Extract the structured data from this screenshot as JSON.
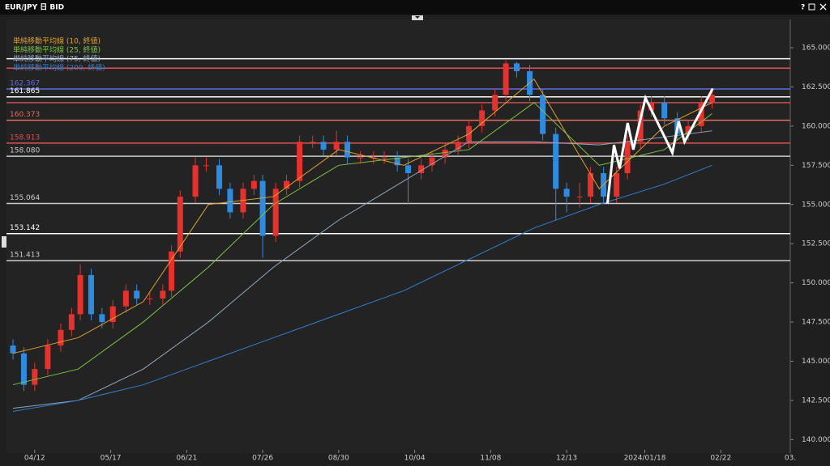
{
  "window": {
    "title": "EUR/JPY 日 BID",
    "help": "?"
  },
  "chart_data": {
    "type": "candlestick",
    "xlim": [
      -13,
      348
    ],
    "ylim": [
      139.4,
      166.6
    ],
    "xticks": [
      {
        "value": 0,
        "label": "04/12"
      },
      {
        "value": 35,
        "label": "05/17"
      },
      {
        "value": 70,
        "label": "06/21"
      },
      {
        "value": 105,
        "label": "07/26"
      },
      {
        "value": 140,
        "label": "08/30"
      },
      {
        "value": 175,
        "label": "10/04"
      },
      {
        "value": 210,
        "label": "11/08"
      },
      {
        "value": 245,
        "label": "12/13"
      },
      {
        "value": 281,
        "label": "2024/01/18"
      },
      {
        "value": 316,
        "label": "02/22"
      },
      {
        "value": 348,
        "label": "03."
      }
    ],
    "yticks": [
      {
        "value": 140,
        "label": "140.000"
      },
      {
        "value": 142.5,
        "label": "142.500"
      },
      {
        "value": 145,
        "label": "145.000"
      },
      {
        "value": 147.5,
        "label": "147.500"
      },
      {
        "value": 150,
        "label": "150.000"
      },
      {
        "value": 152.5,
        "label": "152.500"
      },
      {
        "value": 155,
        "label": "155.000"
      },
      {
        "value": 157.5,
        "label": "157.500"
      },
      {
        "value": 160,
        "label": "160.000"
      },
      {
        "value": 162.5,
        "label": "162.500"
      },
      {
        "value": 165,
        "label": "165.000"
      }
    ],
    "ohlc": {
      "up_color": "#e8302c",
      "down_color": "#2f8be0",
      "x": [
        -10,
        -5,
        0,
        6,
        12,
        17,
        21,
        26,
        31,
        36,
        42,
        47,
        53,
        59,
        63,
        67,
        74,
        79,
        85,
        90,
        96,
        101,
        105,
        111,
        116,
        122,
        128,
        133,
        139,
        144,
        150,
        156,
        161,
        167,
        172,
        178,
        183,
        189,
        195,
        200,
        206,
        212,
        217,
        222,
        228,
        234,
        240,
        245,
        251,
        256,
        262,
        268,
        273,
        279,
        284,
        290,
        296,
        301,
        307,
        312
      ],
      "open": [
        146,
        145.5,
        143.5,
        144.5,
        146,
        147,
        148,
        150.5,
        148,
        147.5,
        148.5,
        149.5,
        149,
        149,
        149.5,
        152,
        155.5,
        157.5,
        157.5,
        156,
        154.5,
        156,
        156.5,
        153,
        156,
        156.5,
        159,
        159,
        158.5,
        159,
        158,
        158,
        158,
        158,
        157.5,
        157,
        157.5,
        158,
        158.5,
        159,
        160,
        161,
        162,
        164,
        163.5,
        162,
        159.5,
        156,
        155.5,
        155.5,
        157,
        155.5,
        157,
        159,
        161,
        161.5,
        160.5,
        159.5,
        160,
        161.5
      ],
      "high": [
        146.4,
        145.9,
        144.9,
        146.4,
        147.4,
        148.4,
        151.2,
        150.9,
        148.4,
        148.9,
        149.9,
        149.9,
        149.4,
        149.9,
        152.4,
        155.9,
        158,
        158,
        157.9,
        156.4,
        156.4,
        156.9,
        156.9,
        156.4,
        156.9,
        159.4,
        159.4,
        159.4,
        159.7,
        159.4,
        158.4,
        158.4,
        158.4,
        158.4,
        157.9,
        157.9,
        158.4,
        158.9,
        159.4,
        160.4,
        161.4,
        162.4,
        164.2,
        164.1,
        163.9,
        162.4,
        159.9,
        156.4,
        156.4,
        157.4,
        157.4,
        157.4,
        159.4,
        161.4,
        161.9,
        161.9,
        160.9,
        160.4,
        161.9,
        162.4
      ],
      "low": [
        145.1,
        143.1,
        143.1,
        144.1,
        145.6,
        146.6,
        147.6,
        147.6,
        147.1,
        147.1,
        148.1,
        148.6,
        148.6,
        148.6,
        149.1,
        151.6,
        155.1,
        157.1,
        155.6,
        154.1,
        154.1,
        155.6,
        151.6,
        152.6,
        155.6,
        156.1,
        158.6,
        158.1,
        158.1,
        157.6,
        157.6,
        157.6,
        157.6,
        157.1,
        155,
        156.6,
        157.1,
        157.6,
        158.1,
        158.6,
        159.6,
        160.6,
        161.6,
        163.1,
        161.6,
        159.1,
        154,
        154.5,
        154.8,
        155.1,
        155.1,
        155.1,
        156.6,
        158.6,
        160.6,
        160.1,
        159.1,
        159.1,
        159.6,
        161.1
      ],
      "close": [
        145.5,
        143.5,
        144.5,
        146,
        147,
        148,
        150.5,
        148,
        147.5,
        148.5,
        149.5,
        149,
        149,
        149.5,
        152,
        155.5,
        157.5,
        157.5,
        156,
        154.5,
        156,
        156.5,
        153,
        156,
        156.5,
        159,
        159,
        158.5,
        159,
        158,
        158,
        158,
        158,
        157.5,
        157,
        157.5,
        158,
        158.5,
        159,
        160,
        161,
        162,
        164,
        163.5,
        162,
        159.5,
        156,
        155.5,
        155.5,
        157,
        155.5,
        157,
        159,
        161,
        161.5,
        160.5,
        159.5,
        160,
        161.5,
        162
      ]
    },
    "series": [
      {
        "name": "単純移動平均線 (10, 終値)",
        "color": "#e0a030",
        "x": [
          -10,
          20,
          50,
          80,
          110,
          140,
          170,
          200,
          230,
          260,
          290,
          312
        ],
        "values": [
          145.5,
          146.5,
          148.8,
          155,
          155.5,
          158.5,
          157.5,
          159.5,
          163,
          156,
          160,
          161.5
        ]
      },
      {
        "name": "単純移動平均線 (25, 終値)",
        "color": "#7cc242",
        "x": [
          -10,
          20,
          50,
          80,
          110,
          140,
          170,
          200,
          230,
          260,
          290,
          312
        ],
        "values": [
          143.5,
          144.5,
          147.5,
          151,
          155,
          157.5,
          158,
          158.5,
          161.5,
          157.5,
          158.5,
          160.8
        ]
      },
      {
        "name": "単純移動平均線 (75, 終値)",
        "color": "#8fa8c0",
        "x": [
          -10,
          20,
          50,
          80,
          110,
          140,
          170,
          200,
          230,
          260,
          290,
          312
        ],
        "values": [
          142,
          142.5,
          144.5,
          147.5,
          151,
          154,
          156.5,
          159,
          159,
          158.8,
          159.3,
          159.7
        ]
      },
      {
        "name": "単純移動平均線 (200, 終値)",
        "color": "#2f7fd0",
        "x": [
          -10,
          20,
          50,
          80,
          110,
          140,
          170,
          200,
          230,
          260,
          290,
          312
        ],
        "values": [
          141.8,
          142.5,
          143.5,
          145,
          146.5,
          148,
          149.5,
          151.5,
          153.5,
          155,
          156.3,
          157.5
        ]
      }
    ],
    "levels": [
      {
        "value": 164.3,
        "color": "#ffffff"
      },
      {
        "value": 163.7,
        "color": "#e05050"
      },
      {
        "value": 162.367,
        "label": "162.367",
        "color": "#5a6ee0"
      },
      {
        "value": 161.865,
        "label": "161.865",
        "color": "#ffffff"
      },
      {
        "value": 161.5,
        "color": "#c05050"
      },
      {
        "value": 160.373,
        "label": "160.373",
        "color": "#e07060"
      },
      {
        "value": 158.913,
        "label": "158.913",
        "color": "#e05050"
      },
      {
        "value": 158.08,
        "label": "158.080",
        "color": "#cccccc"
      },
      {
        "value": 155.064,
        "label": "155.064",
        "color": "#cccccc"
      },
      {
        "value": 153.142,
        "label": "153.142",
        "color": "#ffffff"
      },
      {
        "value": 151.413,
        "label": "151.413",
        "color": "#cccccc"
      }
    ],
    "annotation": {
      "color": "#ffffff",
      "x": [
        263.8,
        266.8,
        269.4,
        273.1,
        275.7,
        281.3,
        293.7,
        296.6,
        299.3,
        312.3
      ],
      "y": [
        155.06,
        158.8,
        157.3,
        160.2,
        158.5,
        161.8,
        158.3,
        160.3,
        159,
        162.4
      ]
    }
  }
}
